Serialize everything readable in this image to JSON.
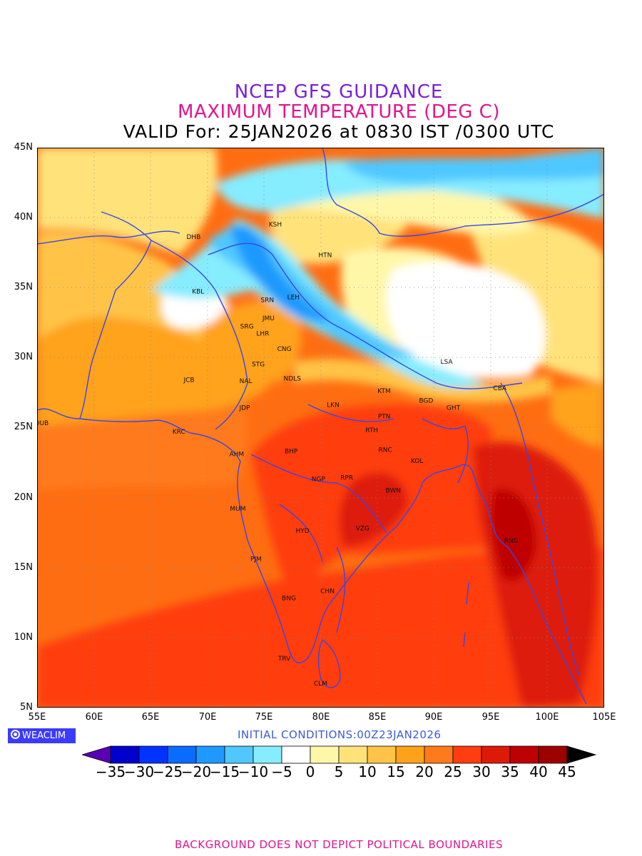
{
  "header": {
    "line1": "NCEP GFS GUIDANCE",
    "line2": "MAXIMUM TEMPERATURE (DEG C)",
    "line3": "VALID For: 25JAN2026 at 0830 IST /0300 UTC"
  },
  "axes": {
    "lat_labels": [
      "45N",
      "40N",
      "35N",
      "30N",
      "25N",
      "20N",
      "15N",
      "10N",
      "5N"
    ],
    "lon_labels": [
      "55E",
      "60E",
      "65E",
      "70E",
      "75E",
      "80E",
      "85E",
      "90E",
      "95E",
      "100E",
      "105E"
    ]
  },
  "branding": {
    "logo_text": "WEACLIM"
  },
  "init_conditions": "INITIAL CONDITIONS:00Z23JAN2026",
  "colorbar": {
    "tick_labels": [
      "−35",
      "−30",
      "−25",
      "−20",
      "−15",
      "−10",
      "−5",
      "0",
      "5",
      "10",
      "15",
      "20",
      "25",
      "30",
      "35",
      "40",
      "45"
    ],
    "colors": [
      "#5a00b4",
      "#0000cd",
      "#0033ff",
      "#0a6bff",
      "#1e99ff",
      "#50c8ff",
      "#86ecff",
      "#ffffff",
      "#fff7a8",
      "#ffe27a",
      "#ffc447",
      "#ffa21a",
      "#ff7a1a",
      "#ff3d0e",
      "#dd1a08",
      "#bf0000",
      "#9c0000",
      "#000000"
    ]
  },
  "cities": [
    {
      "code": "KSH",
      "lon": 76.0,
      "lat": 39.5
    },
    {
      "code": "DHB",
      "lon": 68.8,
      "lat": 38.6
    },
    {
      "code": "HTN",
      "lon": 80.4,
      "lat": 37.3
    },
    {
      "code": "KBL",
      "lon": 69.2,
      "lat": 34.7
    },
    {
      "code": "SRN",
      "lon": 75.3,
      "lat": 34.1
    },
    {
      "code": "LEH",
      "lon": 77.6,
      "lat": 34.3
    },
    {
      "code": "JMU",
      "lon": 75.4,
      "lat": 32.8
    },
    {
      "code": "SRG",
      "lon": 73.5,
      "lat": 32.2
    },
    {
      "code": "LHR",
      "lon": 74.9,
      "lat": 31.7
    },
    {
      "code": "CNG",
      "lon": 76.8,
      "lat": 30.6
    },
    {
      "code": "LSA",
      "lon": 91.1,
      "lat": 29.7
    },
    {
      "code": "STG",
      "lon": 74.5,
      "lat": 29.5
    },
    {
      "code": "JCB",
      "lon": 68.4,
      "lat": 28.4
    },
    {
      "code": "NAL",
      "lon": 73.4,
      "lat": 28.3
    },
    {
      "code": "NDLS",
      "lon": 77.5,
      "lat": 28.5
    },
    {
      "code": "KTM",
      "lon": 85.6,
      "lat": 27.6
    },
    {
      "code": "CBA",
      "lon": 95.8,
      "lat": 27.8
    },
    {
      "code": "BGD",
      "lon": 89.3,
      "lat": 26.9
    },
    {
      "code": "GHT",
      "lon": 91.7,
      "lat": 26.4
    },
    {
      "code": "JDP",
      "lon": 73.3,
      "lat": 26.4
    },
    {
      "code": "LKN",
      "lon": 81.1,
      "lat": 26.6
    },
    {
      "code": "PTN",
      "lon": 85.6,
      "lat": 25.8
    },
    {
      "code": "DUB",
      "lon": 55.4,
      "lat": 25.3
    },
    {
      "code": "KRC",
      "lon": 67.5,
      "lat": 24.7
    },
    {
      "code": "RTH",
      "lon": 84.5,
      "lat": 24.8
    },
    {
      "code": "AHM",
      "lon": 72.6,
      "lat": 23.1
    },
    {
      "code": "BHP",
      "lon": 77.4,
      "lat": 23.3
    },
    {
      "code": "RNC",
      "lon": 85.7,
      "lat": 23.4
    },
    {
      "code": "KOL",
      "lon": 88.5,
      "lat": 22.6
    },
    {
      "code": "NGP",
      "lon": 79.8,
      "lat": 21.3
    },
    {
      "code": "RPR",
      "lon": 82.3,
      "lat": 21.4
    },
    {
      "code": "BWN",
      "lon": 86.4,
      "lat": 20.5
    },
    {
      "code": "MUM",
      "lon": 72.7,
      "lat": 19.2
    },
    {
      "code": "HYD",
      "lon": 78.4,
      "lat": 17.6
    },
    {
      "code": "VZG",
      "lon": 83.7,
      "lat": 17.8
    },
    {
      "code": "RNG",
      "lon": 96.8,
      "lat": 16.9
    },
    {
      "code": "PJM",
      "lon": 74.3,
      "lat": 15.6
    },
    {
      "code": "CHN",
      "lon": 80.6,
      "lat": 13.3
    },
    {
      "code": "BNG",
      "lon": 77.2,
      "lat": 12.8
    },
    {
      "code": "TRV",
      "lon": 76.8,
      "lat": 8.5
    },
    {
      "code": "CLM",
      "lon": 80.0,
      "lat": 6.7
    }
  ],
  "footer_note": "BACKGROUND DOES NOT DEPICT POLITICAL BOUNDARIES"
}
